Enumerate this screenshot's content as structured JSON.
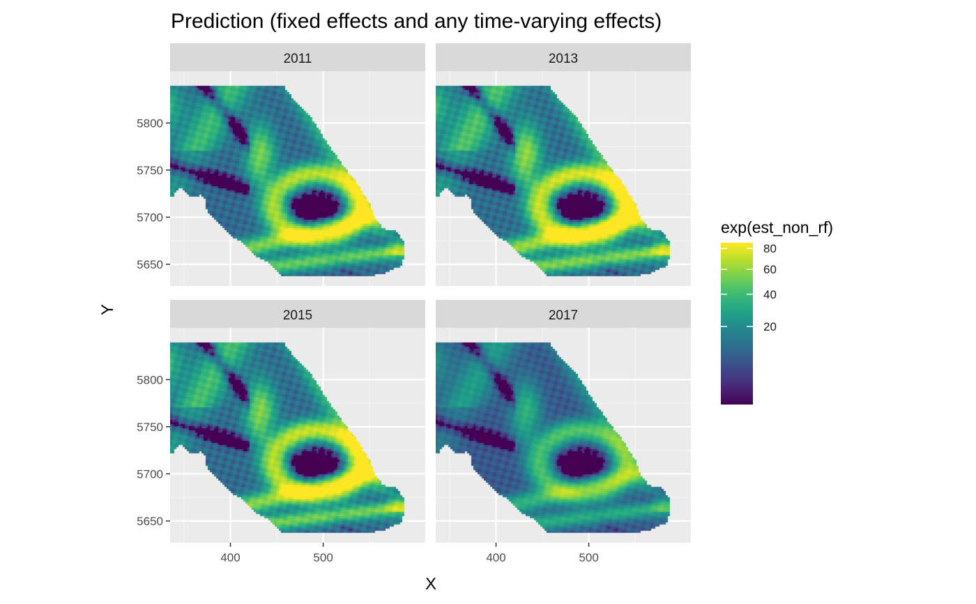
{
  "title": "Prediction (fixed effects and any time-varying effects)",
  "chart_data": {
    "type": "heatmap",
    "title": "Prediction (fixed effects and any time-varying effects)",
    "xlabel": "X",
    "ylabel": "Y",
    "facets": [
      "2011",
      "2013",
      "2015",
      "2017"
    ],
    "facet_intensity": [
      1.0,
      1.12,
      1.06,
      0.66
    ],
    "xlim": [
      335,
      610
    ],
    "ylim": [
      5627,
      5855
    ],
    "x_ticks": [
      400,
      500
    ],
    "y_ticks": [
      5650,
      5700,
      5750,
      5800
    ],
    "x_minor": [
      350,
      450,
      550
    ],
    "y_minor": [
      5675,
      5725,
      5775
    ],
    "grid": true,
    "legend": {
      "title": "exp(est_non_rf)",
      "placement": "right",
      "colormap": "viridis",
      "scale": "sqrt",
      "range": [
        0,
        86
      ],
      "ticks": [
        20,
        40,
        60,
        80
      ]
    },
    "region_polygon": [
      [
        350,
        5840
      ],
      [
        437,
        5840
      ],
      [
        457,
        5840
      ],
      [
        470,
        5823
      ],
      [
        488,
        5805
      ],
      [
        505,
        5778
      ],
      [
        520,
        5757
      ],
      [
        535,
        5738
      ],
      [
        550,
        5715
      ],
      [
        555,
        5700
      ],
      [
        565,
        5688
      ],
      [
        578,
        5685
      ],
      [
        587,
        5675
      ],
      [
        588,
        5660
      ],
      [
        583,
        5645
      ],
      [
        580,
        5647
      ],
      [
        565,
        5640
      ],
      [
        548,
        5637
      ],
      [
        455,
        5637
      ],
      [
        440,
        5652
      ],
      [
        428,
        5658
      ],
      [
        418,
        5668
      ],
      [
        410,
        5675
      ],
      [
        400,
        5680
      ],
      [
        390,
        5692
      ],
      [
        375,
        5705
      ],
      [
        373,
        5720
      ],
      [
        368,
        5723
      ],
      [
        356,
        5722
      ],
      [
        347,
        5732
      ],
      [
        340,
        5725
      ],
      [
        340,
        5722
      ],
      [
        328,
        5722
      ],
      [
        322,
        5732
      ],
      [
        320,
        5737
      ],
      [
        311,
        5758
      ],
      [
        304,
        5768
      ],
      [
        300,
        5775
      ],
      [
        300,
        5790
      ],
      [
        290,
        5802
      ],
      [
        278,
        5814
      ],
      [
        272,
        5824
      ],
      [
        268,
        5833
      ]
    ]
  }
}
